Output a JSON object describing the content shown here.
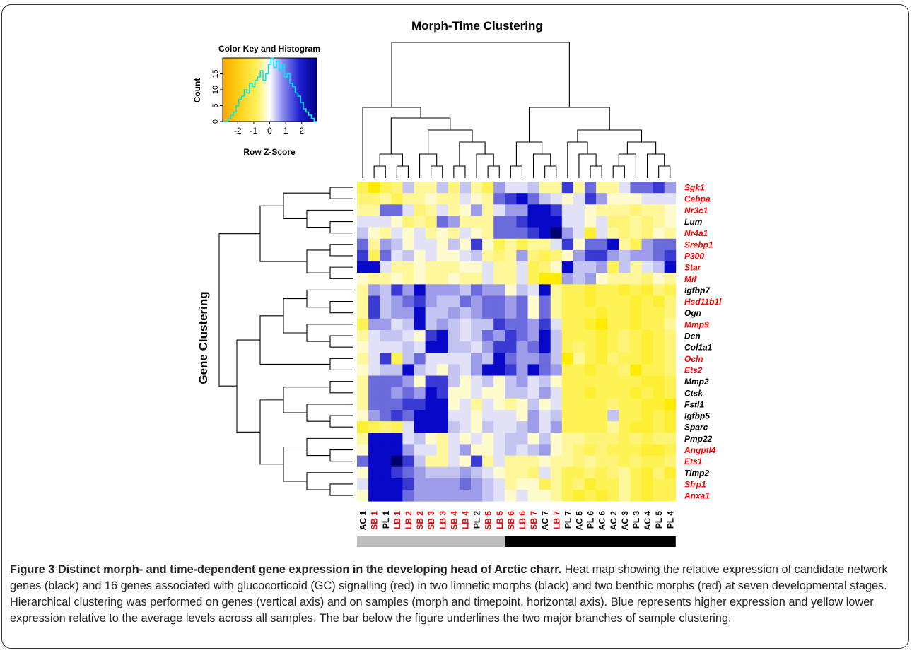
{
  "figure": {
    "main_title": "Morph-Time Clustering",
    "y_cluster_label": "Gene Clustering",
    "caption_title": "Figure 3 Distinct morph- and time-dependent gene expression in the developing head of Arctic charr.",
    "caption_body": "Heat map showing the relative expression of candidate network genes (black) and 16 genes associated with glucocorticoid (GC) signalling (red) in two limnetic morphs (black) and two benthic morphs (red) at seven developmental stages. Hierarchical clustering was performed on genes (vertical axis) and on samples (morph and timepoint, horizontal axis). Blue represents higher expression and yellow lower expression relative to the average levels across all samples. The bar below the figure underlines the two major branches of sample clustering."
  },
  "color_key": {
    "title": "Color Key and Histogram",
    "xlabel": "Row Z-Score",
    "ylabel": "Count",
    "x_ticks": [
      "-2",
      "-1",
      "0",
      "1",
      "2"
    ],
    "y_ticks": [
      "0",
      "5",
      "10",
      "15"
    ],
    "low_color": "#f7b500",
    "mid_color": "#ffffff",
    "high_color": "#00008b",
    "histogram_color": "#00e5ee"
  },
  "colors": {
    "limnetic_label": "#000000",
    "benthic_label": "#ff0000",
    "cluster_bar_left": "#bdbdbd",
    "cluster_bar_right": "#000000"
  },
  "chart_data": {
    "type": "heatmap",
    "title": "Morph-Time Clustering",
    "ylabel": "Gene Clustering",
    "color_scale": {
      "label": "Row Z-Score",
      "low": "yellow",
      "high": "blue",
      "range": [
        -2.5,
        2.5
      ]
    },
    "samples": [
      {
        "name": "AC 1",
        "group": "limnetic"
      },
      {
        "name": "SB 1",
        "group": "benthic"
      },
      {
        "name": "PL 1",
        "group": "limnetic"
      },
      {
        "name": "LB 1",
        "group": "benthic"
      },
      {
        "name": "LB 2",
        "group": "benthic"
      },
      {
        "name": "SB 2",
        "group": "benthic"
      },
      {
        "name": "SB 3",
        "group": "benthic"
      },
      {
        "name": "LB 3",
        "group": "benthic"
      },
      {
        "name": "SB 4",
        "group": "benthic"
      },
      {
        "name": "LB 4",
        "group": "benthic"
      },
      {
        "name": "PL 2",
        "group": "limnetic"
      },
      {
        "name": "SB 5",
        "group": "benthic"
      },
      {
        "name": "LB 5",
        "group": "benthic"
      },
      {
        "name": "SB 6",
        "group": "benthic"
      },
      {
        "name": "LB 6",
        "group": "benthic"
      },
      {
        "name": "SB 7",
        "group": "benthic"
      },
      {
        "name": "AC 7",
        "group": "limnetic"
      },
      {
        "name": "LB 7",
        "group": "benthic"
      },
      {
        "name": "PL 7",
        "group": "limnetic"
      },
      {
        "name": "AC 5",
        "group": "limnetic"
      },
      {
        "name": "PL 6",
        "group": "limnetic"
      },
      {
        "name": "AC 6",
        "group": "limnetic"
      },
      {
        "name": "AC 2",
        "group": "limnetic"
      },
      {
        "name": "AC 3",
        "group": "limnetic"
      },
      {
        "name": "PL 3",
        "group": "limnetic"
      },
      {
        "name": "AC 4",
        "group": "limnetic"
      },
      {
        "name": "PL 5",
        "group": "limnetic"
      },
      {
        "name": "PL 4",
        "group": "limnetic"
      }
    ],
    "genes": [
      {
        "name": "Sgk1",
        "gc": true
      },
      {
        "name": "Cebpa",
        "gc": true
      },
      {
        "name": "Nr3c1",
        "gc": true
      },
      {
        "name": "Lum",
        "gc": false
      },
      {
        "name": "Nr4a1",
        "gc": true
      },
      {
        "name": "Srebp1",
        "gc": true
      },
      {
        "name": "P300",
        "gc": true
      },
      {
        "name": "Star",
        "gc": true
      },
      {
        "name": "Mif",
        "gc": true
      },
      {
        "name": "Igfbp7",
        "gc": false
      },
      {
        "name": "Hsd11b1l",
        "gc": true
      },
      {
        "name": "Ogn",
        "gc": false
      },
      {
        "name": "Mmp9",
        "gc": true
      },
      {
        "name": "Dcn",
        "gc": false
      },
      {
        "name": "Col1a1",
        "gc": false
      },
      {
        "name": "Ocln",
        "gc": true
      },
      {
        "name": "Ets2",
        "gc": true
      },
      {
        "name": "Mmp2",
        "gc": false
      },
      {
        "name": "Ctsk",
        "gc": false
      },
      {
        "name": "Fstl1",
        "gc": false
      },
      {
        "name": "Igfbp5",
        "gc": false
      },
      {
        "name": "Sparc",
        "gc": false
      },
      {
        "name": "Pmp22",
        "gc": false
      },
      {
        "name": "Angptl4",
        "gc": true
      },
      {
        "name": "Ets1",
        "gc": true
      },
      {
        "name": "Timp2",
        "gc": false
      },
      {
        "name": "Sfrp1",
        "gc": true
      },
      {
        "name": "Anxa1",
        "gc": true
      }
    ],
    "values": [
      [
        -1.0,
        -1.5,
        -1.0,
        -0.8,
        0.6,
        -0.6,
        -0.6,
        0.6,
        -0.8,
        0.6,
        -0.6,
        -1.0,
        1.0,
        0.3,
        0.3,
        0.6,
        -0.6,
        -0.6,
        2.0,
        -0.6,
        1.5,
        -0.6,
        -0.6,
        0.3,
        1.5,
        1.5,
        2.0,
        1.0
      ],
      [
        -0.8,
        -0.8,
        -0.6,
        -1.0,
        -0.6,
        -0.6,
        -0.3,
        -0.6,
        -0.6,
        0.3,
        -0.3,
        -0.6,
        1.5,
        2.0,
        2.5,
        1.5,
        0.6,
        0.3,
        -0.3,
        0.3,
        2.0,
        1.0,
        -0.3,
        -0.3,
        -0.3,
        0.3,
        0.3,
        0.3
      ],
      [
        -0.6,
        -0.6,
        1.5,
        1.5,
        0.3,
        -0.8,
        -0.6,
        0.3,
        -0.6,
        -0.3,
        1.0,
        -0.6,
        0.3,
        1.0,
        1.0,
        2.5,
        2.5,
        2.0,
        0.3,
        0.3,
        -0.3,
        -0.6,
        -0.6,
        -0.6,
        -0.8,
        -0.6,
        -0.6,
        -0.3
      ],
      [
        0.3,
        0.3,
        0.3,
        -0.3,
        -0.8,
        -0.6,
        -0.8,
        1.5,
        1.0,
        -0.6,
        -0.6,
        -0.6,
        1.5,
        1.5,
        2.0,
        2.5,
        2.5,
        2.5,
        0.3,
        0.3,
        -0.3,
        0.3,
        -0.8,
        -0.8,
        -0.6,
        -0.8,
        -0.6,
        -0.3
      ],
      [
        0.6,
        -0.3,
        -0.6,
        0.3,
        -0.3,
        0.3,
        -0.6,
        -0.3,
        -0.6,
        0.3,
        -0.3,
        -0.6,
        1.5,
        1.5,
        1.5,
        2.0,
        2.5,
        3.0,
        1.0,
        0.3,
        -1.2,
        0.3,
        -0.6,
        -0.8,
        -0.6,
        -0.8,
        -0.3,
        -0.6
      ],
      [
        1.5,
        -0.6,
        1.0,
        0.6,
        -0.3,
        0.3,
        0.3,
        -0.3,
        0.6,
        -0.3,
        2.0,
        -0.3,
        -1.0,
        -0.6,
        -1.0,
        -0.6,
        -0.6,
        0.3,
        2.0,
        -0.3,
        1.5,
        1.5,
        2.5,
        -0.6,
        -1.0,
        1.0,
        1.5,
        1.5
      ],
      [
        2.0,
        -1.0,
        1.5,
        0.3,
        0.6,
        -0.3,
        0.3,
        -0.3,
        -0.3,
        0.3,
        0.6,
        -0.6,
        -0.8,
        -0.6,
        1.0,
        -0.8,
        -1.0,
        -0.8,
        -0.3,
        1.0,
        2.0,
        2.0,
        1.0,
        0.6,
        1.0,
        1.0,
        1.5,
        2.0
      ],
      [
        2.5,
        2.5,
        0.3,
        -0.6,
        -0.6,
        -0.3,
        -0.6,
        -0.6,
        -0.6,
        -0.3,
        -0.3,
        0.3,
        -0.6,
        -0.6,
        0.3,
        -1.0,
        -0.8,
        -0.3,
        2.5,
        0.6,
        0.6,
        1.0,
        -1.0,
        0.6,
        -0.6,
        0.3,
        0.6,
        2.5
      ],
      [
        -0.3,
        -0.6,
        -0.6,
        -0.3,
        -0.6,
        -0.3,
        -0.6,
        -0.6,
        -0.3,
        -0.6,
        -0.6,
        0.3,
        -0.6,
        -0.6,
        0.3,
        -1.0,
        -1.5,
        -2.0,
        1.0,
        0.6,
        1.0,
        -0.3,
        -0.6,
        -0.6,
        -0.6,
        -0.8,
        -0.3,
        -0.6
      ],
      [
        -0.6,
        1.0,
        0.6,
        2.0,
        1.0,
        2.5,
        1.0,
        1.0,
        1.0,
        0.6,
        1.5,
        1.0,
        1.0,
        -0.3,
        0.6,
        0.3,
        2.5,
        -0.6,
        -1.0,
        -1.0,
        -1.2,
        -1.0,
        -1.0,
        -1.2,
        -1.0,
        -1.2,
        -0.8,
        -1.0
      ],
      [
        -0.6,
        2.0,
        0.6,
        1.0,
        1.5,
        2.0,
        1.0,
        0.6,
        0.6,
        1.5,
        1.0,
        1.5,
        1.5,
        1.0,
        1.5,
        -0.3,
        1.5,
        -0.6,
        -1.0,
        -1.0,
        -1.2,
        -1.0,
        -1.0,
        -1.0,
        -1.2,
        -1.0,
        -1.2,
        -0.8
      ],
      [
        -0.6,
        2.0,
        0.6,
        1.0,
        1.0,
        2.5,
        0.6,
        0.6,
        1.0,
        0.6,
        1.0,
        1.5,
        1.5,
        1.0,
        1.5,
        -0.3,
        1.5,
        -0.6,
        -1.0,
        -1.0,
        -1.0,
        -1.2,
        -1.0,
        -1.0,
        -1.2,
        -1.0,
        -1.0,
        -0.8
      ],
      [
        -1.0,
        1.0,
        1.0,
        0.3,
        0.6,
        2.5,
        0.6,
        1.0,
        0.6,
        0.3,
        0.6,
        0.6,
        2.0,
        1.5,
        1.5,
        1.0,
        2.0,
        0.3,
        -1.0,
        -1.0,
        -1.2,
        -1.5,
        -1.0,
        -1.0,
        -1.2,
        -1.0,
        -1.0,
        -0.6
      ],
      [
        -0.6,
        0.3,
        0.6,
        0.6,
        0.3,
        -0.3,
        2.0,
        2.5,
        0.6,
        0.3,
        0.6,
        1.5,
        1.0,
        2.0,
        1.5,
        1.0,
        2.5,
        0.6,
        -1.0,
        -1.0,
        -1.0,
        -1.2,
        -1.0,
        -0.8,
        -1.0,
        -1.2,
        -1.0,
        -0.8
      ],
      [
        -0.3,
        0.3,
        0.3,
        0.3,
        0.6,
        0.3,
        2.5,
        2.5,
        0.6,
        0.6,
        0.3,
        1.0,
        2.0,
        2.0,
        1.0,
        1.5,
        2.5,
        0.6,
        -1.0,
        -0.8,
        -1.0,
        -1.2,
        -1.0,
        -0.8,
        -1.0,
        -1.2,
        -1.0,
        -0.8
      ],
      [
        -0.6,
        0.3,
        2.0,
        -1.0,
        0.6,
        1.5,
        0.3,
        0.3,
        0.3,
        0.3,
        1.0,
        0.6,
        2.5,
        1.5,
        1.0,
        1.0,
        1.5,
        0.6,
        -1.5,
        -0.6,
        -1.0,
        -1.2,
        -0.8,
        -1.0,
        -1.0,
        -1.2,
        -1.0,
        -0.8
      ],
      [
        -0.3,
        0.3,
        0.6,
        0.6,
        2.5,
        0.6,
        0.3,
        -0.3,
        0.6,
        0.3,
        1.0,
        2.5,
        2.5,
        2.0,
        1.0,
        2.5,
        1.5,
        1.0,
        -1.0,
        -1.0,
        -1.2,
        -1.0,
        -1.0,
        -0.8,
        -1.5,
        -1.0,
        -1.0,
        -0.8
      ],
      [
        -0.6,
        1.5,
        1.5,
        1.5,
        1.0,
        -0.3,
        2.0,
        2.0,
        0.6,
        -0.3,
        0.3,
        0.6,
        -0.3,
        0.6,
        1.0,
        0.3,
        0.6,
        -0.3,
        -1.0,
        -1.0,
        -1.0,
        -1.0,
        -1.0,
        -1.0,
        -1.0,
        -1.2,
        -1.2,
        -1.0
      ],
      [
        -0.6,
        1.5,
        1.5,
        1.0,
        1.5,
        1.0,
        2.5,
        2.0,
        -0.3,
        -0.3,
        0.3,
        -0.3,
        -0.3,
        0.6,
        0.6,
        0.3,
        1.0,
        0.3,
        -1.0,
        -1.0,
        -1.2,
        -1.0,
        -1.0,
        -1.0,
        -1.2,
        -1.0,
        -1.2,
        -1.0
      ],
      [
        -0.6,
        1.5,
        1.5,
        1.5,
        2.0,
        2.0,
        2.5,
        2.5,
        -0.3,
        0.3,
        -0.6,
        0.3,
        -0.3,
        -0.6,
        -0.3,
        0.6,
        -0.3,
        0.3,
        -1.0,
        -1.0,
        -1.0,
        -1.0,
        -0.8,
        -1.0,
        -1.0,
        -1.2,
        -1.2,
        -1.5
      ],
      [
        -0.3,
        1.0,
        1.5,
        2.0,
        1.5,
        2.5,
        2.5,
        2.5,
        0.3,
        0.3,
        -0.3,
        0.3,
        0.3,
        0.3,
        -0.3,
        1.0,
        0.3,
        0.6,
        -1.0,
        -1.0,
        -1.0,
        -1.0,
        0.6,
        -1.0,
        -1.0,
        -1.2,
        -1.0,
        -1.2
      ],
      [
        -1.2,
        -1.0,
        -0.8,
        -1.0,
        0.3,
        2.5,
        2.5,
        2.5,
        0.6,
        0.3,
        -0.3,
        0.6,
        0.3,
        0.3,
        0.6,
        1.0,
        0.3,
        1.0,
        -1.0,
        -1.0,
        -1.0,
        -1.0,
        -0.6,
        -1.0,
        -1.2,
        -1.2,
        -1.0,
        -1.2
      ],
      [
        -0.6,
        2.5,
        2.5,
        2.5,
        0.3,
        0.6,
        -0.3,
        -0.6,
        0.3,
        -0.3,
        0.3,
        -0.3,
        0.3,
        0.6,
        0.6,
        -0.3,
        0.6,
        -0.3,
        -0.6,
        -0.6,
        -0.8,
        -0.8,
        -0.8,
        -1.0,
        -0.8,
        -1.0,
        -0.8,
        -0.8
      ],
      [
        -0.3,
        2.5,
        2.5,
        2.5,
        1.0,
        0.3,
        0.3,
        -0.6,
        0.3,
        1.0,
        -0.3,
        -0.3,
        0.3,
        0.6,
        0.3,
        0.6,
        1.0,
        -0.3,
        -0.6,
        -0.8,
        -1.0,
        -0.8,
        -1.0,
        -1.0,
        -1.0,
        -1.2,
        -1.2,
        -1.0
      ],
      [
        1.5,
        2.5,
        2.5,
        3.0,
        2.0,
        0.6,
        -0.6,
        -0.6,
        0.3,
        -0.3,
        2.0,
        -0.6,
        0.3,
        -0.6,
        -0.6,
        -0.6,
        -0.3,
        -0.6,
        -0.6,
        -0.8,
        -0.6,
        -0.8,
        -0.8,
        -1.0,
        -0.8,
        -1.0,
        -1.0,
        -0.8
      ],
      [
        -0.3,
        2.5,
        2.5,
        2.0,
        1.5,
        1.0,
        0.6,
        0.6,
        0.6,
        1.0,
        0.6,
        0.3,
        -0.3,
        -0.6,
        -0.6,
        -0.8,
        0.3,
        -0.6,
        -1.0,
        -1.0,
        -0.8,
        -1.0,
        -0.8,
        -0.6,
        -1.0,
        -1.2,
        -0.8,
        -1.2
      ],
      [
        0.3,
        2.5,
        2.5,
        2.5,
        2.0,
        1.0,
        1.0,
        1.0,
        1.0,
        1.5,
        1.0,
        0.6,
        0.3,
        -0.6,
        -0.3,
        -0.3,
        -1.0,
        -0.6,
        -1.0,
        -0.8,
        -1.2,
        -1.0,
        -1.0,
        -0.6,
        -1.0,
        -1.2,
        -1.0,
        -1.0
      ],
      [
        -0.3,
        2.5,
        2.5,
        2.5,
        1.5,
        1.0,
        1.0,
        1.0,
        1.0,
        1.0,
        1.0,
        0.6,
        0.3,
        -0.3,
        0.3,
        -0.3,
        -0.3,
        -0.6,
        -1.0,
        -1.2,
        -1.0,
        -1.2,
        -1.0,
        -0.6,
        -1.0,
        -1.2,
        -1.0,
        -1.0
      ]
    ],
    "sample_cluster_bar": [
      {
        "from": "AC 1",
        "to": "LB 5",
        "color": "grey"
      },
      {
        "from": "SB 6",
        "to": "PL 4",
        "color": "black"
      }
    ],
    "histogram": {
      "xlabel": "Row Z-Score",
      "ylabel": "Count",
      "xlim": [
        -3,
        3
      ],
      "ylim": [
        0,
        20
      ]
    }
  }
}
